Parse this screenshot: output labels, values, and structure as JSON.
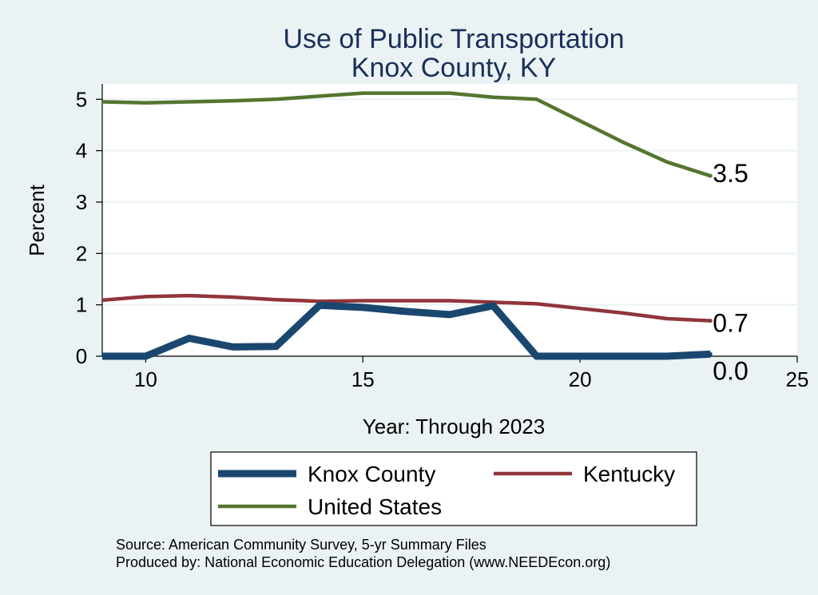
{
  "chart_data": {
    "type": "line",
    "title": "Use of Public Transportation",
    "subtitle": "Knox County, KY",
    "xlabel": "Year: Through 2023",
    "ylabel": "Percent",
    "xlim": [
      9,
      25
    ],
    "ylim": [
      0,
      5.3
    ],
    "xticks": [
      10,
      15,
      20,
      25
    ],
    "yticks": [
      0,
      1,
      2,
      3,
      4,
      5
    ],
    "grid": "horizontal",
    "legend_position": "bottom",
    "series": [
      {
        "name": "Knox County",
        "color": "#1a476f",
        "x": [
          9,
          10,
          11,
          12,
          13,
          14,
          15,
          16,
          17,
          18,
          19,
          20,
          21,
          22,
          23
        ],
        "values": [
          0.0,
          0.0,
          0.35,
          0.18,
          0.19,
          0.99,
          0.95,
          0.87,
          0.81,
          0.98,
          0.0,
          0.0,
          0.0,
          0.0,
          0.04
        ],
        "end_label": "0.0"
      },
      {
        "name": "Kentucky",
        "color": "#90353b",
        "x": [
          9,
          10,
          11,
          12,
          13,
          14,
          15,
          16,
          17,
          18,
          19,
          20,
          21,
          22,
          23
        ],
        "values": [
          1.09,
          1.16,
          1.18,
          1.15,
          1.1,
          1.07,
          1.08,
          1.08,
          1.08,
          1.05,
          1.02,
          0.93,
          0.84,
          0.73,
          0.69
        ],
        "end_label": "0.7"
      },
      {
        "name": "United States",
        "color": "#55752f",
        "x": [
          9,
          10,
          11,
          12,
          13,
          14,
          15,
          16,
          17,
          18,
          19,
          20,
          21,
          22,
          23
        ],
        "values": [
          4.95,
          4.93,
          4.95,
          4.97,
          5.0,
          5.06,
          5.12,
          5.12,
          5.12,
          5.04,
          5.0,
          4.58,
          4.16,
          3.78,
          3.51
        ],
        "end_label": "3.5"
      }
    ]
  },
  "footer": {
    "source": "Source: American Community Survey, 5-yr Summary Files",
    "producer": "Produced by: National Economic Education Delegation (www.NEEDEcon.org)"
  }
}
